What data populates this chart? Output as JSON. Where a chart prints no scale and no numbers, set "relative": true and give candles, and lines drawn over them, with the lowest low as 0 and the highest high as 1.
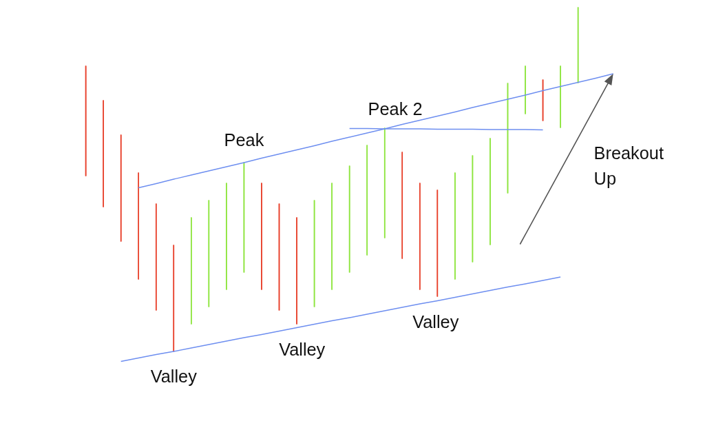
{
  "chart_data": {
    "type": "candlestick",
    "relative": true,
    "tick_labels": false,
    "grid": false,
    "categories": [
      null,
      null,
      null,
      null,
      null,
      null,
      null,
      null,
      null,
      null,
      null,
      null,
      null,
      null,
      null,
      null,
      null,
      null,
      null,
      null,
      null,
      null,
      null,
      null,
      null,
      null,
      null,
      null,
      null,
      null,
      null
    ],
    "ohlc": [
      [
        0.83,
        0.83,
        0.51,
        0.51
      ],
      [
        0.73,
        0.73,
        0.42,
        0.42
      ],
      [
        0.63,
        0.63,
        0.32,
        0.32
      ],
      [
        0.52,
        0.52,
        0.21,
        0.21
      ],
      [
        0.43,
        0.43,
        0.12,
        0.12
      ],
      [
        0.31,
        0.31,
        0,
        0
      ],
      [
        0.08,
        0.39,
        0.08,
        0.39
      ],
      [
        0.13,
        0.44,
        0.13,
        0.44
      ],
      [
        0.18,
        0.49,
        0.18,
        0.49
      ],
      [
        0.23,
        0.55,
        0.23,
        0.55
      ],
      [
        0.49,
        0.49,
        0.18,
        0.18
      ],
      [
        0.43,
        0.43,
        0.12,
        0.12
      ],
      [
        0.39,
        0.39,
        0.08,
        0.08
      ],
      [
        0.13,
        0.44,
        0.13,
        0.44
      ],
      [
        0.18,
        0.49,
        0.18,
        0.49
      ],
      [
        0.23,
        0.54,
        0.23,
        0.54
      ],
      [
        0.28,
        0.6,
        0.28,
        0.6
      ],
      [
        0.33,
        0.65,
        0.33,
        0.65
      ],
      [
        0.58,
        0.58,
        0.27,
        0.27
      ],
      [
        0.49,
        0.49,
        0.18,
        0.18
      ],
      [
        0.47,
        0.47,
        0.16,
        0.16
      ],
      [
        0.21,
        0.52,
        0.21,
        0.52
      ],
      [
        0.26,
        0.57,
        0.26,
        0.57
      ],
      [
        0.31,
        0.62,
        0.31,
        0.62
      ],
      [
        0.46,
        0.78,
        0.46,
        0.78
      ],
      [
        0.69,
        0.83,
        0.69,
        0.83
      ],
      [
        0.79,
        0.79,
        0.67,
        0.67
      ],
      [
        0.65,
        0.83,
        0.65,
        0.83
      ],
      [
        0.78,
        1,
        0.78,
        1
      ],
      null,
      null
    ],
    "colors": [
      "#e8412c",
      "#e8412c",
      "#e8412c",
      "#e8412c",
      "#e8412c",
      "#e8412c",
      "#8ee53f",
      "#8ee53f",
      "#8ee53f",
      "#8ee53f",
      "#e8412c",
      "#e8412c",
      "#e8412c",
      "#8ee53f",
      "#8ee53f",
      "#8ee53f",
      "#8ee53f",
      "#8ee53f",
      "#e8412c",
      "#e8412c",
      "#e8412c",
      "#8ee53f",
      "#8ee53f",
      "#8ee53f",
      "#8ee53f",
      "#8ee53f",
      "#e8412c",
      "#8ee53f",
      "#8ee53f",
      null,
      null
    ],
    "series": [
      {
        "type": "line",
        "color": "#6d8ef0",
        "values": [
          null,
          null,
          null,
          0.476,
          0.488,
          0.501,
          0.513,
          0.525,
          0.537,
          0.549,
          0.562,
          0.574,
          0.586,
          0.598,
          0.611,
          0.623,
          0.635,
          0.647,
          0.66,
          0.672,
          0.684,
          0.696,
          0.709,
          0.721,
          0.733,
          0.745,
          0.758,
          0.77,
          0.782,
          0.794,
          0.807
        ]
      },
      {
        "type": "line",
        "color": "#6d8ef0",
        "values": [
          null,
          null,
          -0.028,
          -0.018,
          -0.008,
          0.001,
          0.011,
          0.021,
          0.031,
          0.041,
          0.05,
          0.06,
          0.07,
          0.08,
          0.09,
          0.099,
          0.109,
          0.119,
          0.129,
          0.139,
          0.148,
          0.158,
          0.168,
          0.178,
          0.188,
          0.197,
          0.207,
          0.217,
          null,
          null,
          null
        ]
      },
      {
        "type": "line",
        "color": "#6d8ef0",
        "values": [
          null,
          null,
          null,
          null,
          null,
          null,
          null,
          null,
          null,
          null,
          null,
          null,
          null,
          null,
          null,
          0.648,
          0.648,
          0.647,
          0.647,
          0.647,
          0.646,
          0.646,
          0.646,
          0.645,
          0.645,
          0.645,
          0.644,
          null,
          null,
          null,
          null
        ]
      }
    ],
    "annotations": [
      "Peak",
      "Peak 2",
      "Valley",
      "Valley",
      "Valley",
      "Breakout Up"
    ]
  }
}
